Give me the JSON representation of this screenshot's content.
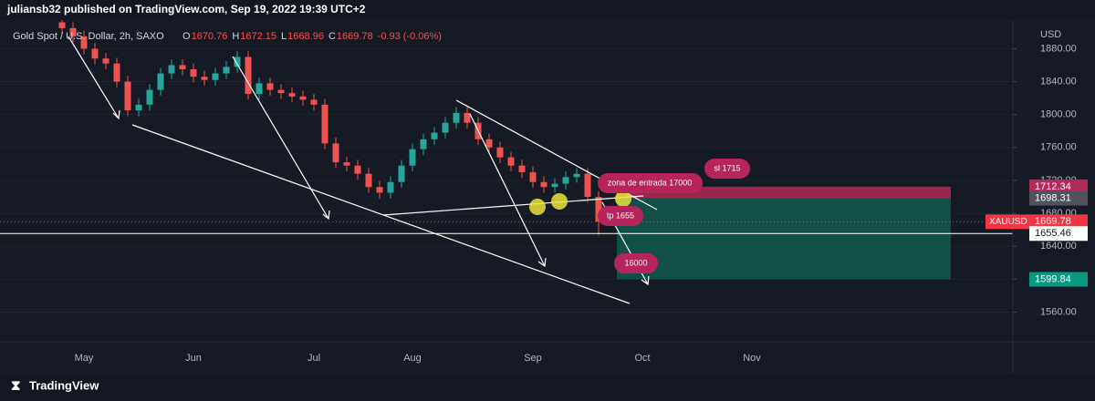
{
  "header": {
    "published": "juliansb32 published on TradingView.com, Sep 19, 2022 19:39 UTC+2",
    "footer": "TradingView"
  },
  "chart_data": {
    "type": "candlestick",
    "title": "Gold Spot / U.S. Dollar, 2h, SAXO",
    "legend_values": [
      {
        "label": "O",
        "value": 1670.76
      },
      {
        "label": "H",
        "value": 1672.15
      },
      {
        "label": "L",
        "value": 1668.96
      },
      {
        "label": "C",
        "value": 1669.78
      }
    ],
    "change": "-0.93 (-0.06%)",
    "axis_unit": "USD",
    "symbol": "XAUUSD",
    "categories": [
      null,
      null,
      "May",
      null,
      null,
      null,
      null,
      null,
      null,
      null,
      null,
      null,
      "Jun",
      null,
      null,
      null,
      null,
      null,
      null,
      null,
      null,
      null,
      null,
      "Jul",
      null,
      null,
      null,
      null,
      null,
      null,
      null,
      null,
      "Aug",
      null,
      null,
      null,
      null,
      null,
      null,
      null,
      null,
      null,
      null,
      "Sep",
      null,
      null,
      null,
      null,
      null,
      null,
      null,
      null,
      null,
      "Oct",
      null,
      null,
      null,
      null,
      null,
      null,
      null,
      null,
      null,
      "Nov"
    ],
    "open": [
      1912,
      1905,
      1895,
      1880,
      1868,
      1862,
      1840,
      1805,
      1812,
      1830,
      1850,
      1860,
      1855,
      1846,
      1842,
      1850,
      1858,
      1870,
      1825,
      1838,
      1830,
      1826,
      1822,
      1818,
      1812,
      1765,
      1742,
      1738,
      1728,
      1712,
      1705,
      1718,
      1738,
      1758,
      1770,
      1778,
      1790,
      1802,
      1790,
      1770,
      1760,
      1748,
      1738,
      1730,
      1718,
      1712,
      1716,
      1724,
      1728,
      1700,
      null,
      null,
      null,
      null,
      null,
      null,
      null,
      null,
      null,
      null,
      null,
      null,
      null,
      null
    ],
    "high": [
      1919,
      1912,
      1902,
      1887,
      1875,
      1869,
      1847,
      1819,
      1837,
      1857,
      1867,
      1867,
      1862,
      1853,
      1857,
      1865,
      1877,
      1877,
      1845,
      1845,
      1837,
      1833,
      1829,
      1825,
      1819,
      1772,
      1749,
      1745,
      1735,
      1719,
      1725,
      1745,
      1765,
      1777,
      1785,
      1797,
      1809,
      1809,
      1797,
      1777,
      1767,
      1755,
      1745,
      1737,
      1725,
      1723,
      1731,
      1735,
      1735,
      1707,
      null,
      null,
      null,
      null,
      null,
      null,
      null,
      null,
      null,
      null,
      null,
      null,
      null,
      null
    ],
    "low": [
      1898,
      1888,
      1873,
      1861,
      1855,
      1833,
      1798,
      1798,
      1805,
      1823,
      1843,
      1848,
      1839,
      1835,
      1835,
      1843,
      1851,
      1818,
      1818,
      1823,
      1819,
      1815,
      1811,
      1805,
      1758,
      1735,
      1731,
      1721,
      1705,
      1698,
      1698,
      1711,
      1731,
      1751,
      1763,
      1771,
      1783,
      1783,
      1763,
      1753,
      1741,
      1731,
      1723,
      1711,
      1705,
      1705,
      1709,
      1717,
      1693,
      1653,
      null,
      null,
      null,
      null,
      null,
      null,
      null,
      null,
      null,
      null,
      null,
      null,
      null,
      null
    ],
    "close": [
      1905,
      1895,
      1880,
      1868,
      1862,
      1840,
      1805,
      1812,
      1830,
      1850,
      1860,
      1855,
      1846,
      1842,
      1850,
      1858,
      1870,
      1825,
      1838,
      1830,
      1826,
      1822,
      1818,
      1812,
      1765,
      1742,
      1738,
      1728,
      1712,
      1705,
      1718,
      1738,
      1758,
      1770,
      1778,
      1790,
      1802,
      1790,
      1770,
      1760,
      1748,
      1738,
      1730,
      1718,
      1712,
      1716,
      1724,
      1728,
      1700,
      1669.78,
      null,
      null,
      null,
      null,
      null,
      null,
      null,
      null,
      null,
      null,
      null,
      null,
      null,
      null
    ],
    "up_color": "#26a69a",
    "down_color": "#ef5350",
    "ylim": [
      1524,
      1917
    ],
    "yticks": [
      {
        "value": 1560,
        "label": "1560.00"
      },
      {
        "value": 1600,
        "label": "1600.00"
      },
      {
        "value": 1640,
        "label": "1640.00"
      },
      {
        "value": 1680,
        "label": "1680.00"
      },
      {
        "value": 1720,
        "label": "1720.00"
      },
      {
        "value": 1760,
        "label": "1760.00"
      },
      {
        "value": 1800,
        "label": "1800.00"
      },
      {
        "value": 1840,
        "label": "1840.00"
      },
      {
        "value": 1880,
        "label": "1880.00"
      }
    ],
    "levels": {
      "stop": 1712.34,
      "entry": 1698.31,
      "price": 1669.78,
      "line": 1655.46,
      "target": 1599.84
    },
    "stop_color": "#b22a56",
    "target_color": "#0f5a4e",
    "price_color": "#f23645",
    "entry_color": "#50535e",
    "target_tag_color": "#089981",
    "annotations": [
      "zona de entrada 17000",
      "sl 1715",
      "tp 1655",
      "16000"
    ]
  }
}
